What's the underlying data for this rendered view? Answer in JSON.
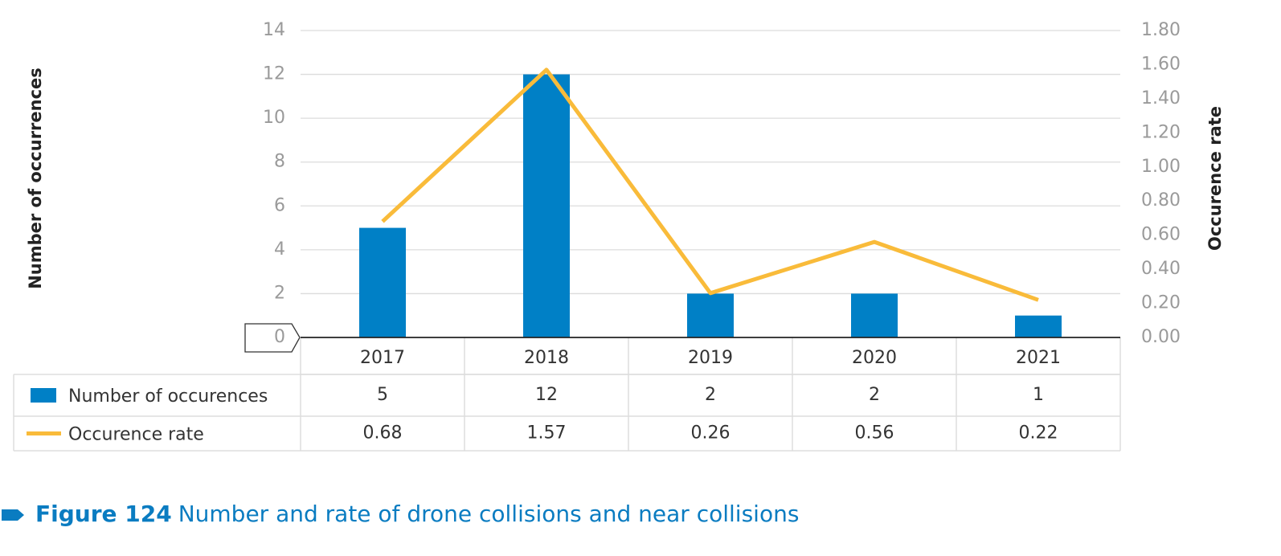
{
  "chart_data": {
    "type": "bar",
    "figure_label": "Figure 124",
    "title": "Number and rate of drone collisions and near collisions",
    "y_label": "Number of occurrences",
    "y2_label": "Occurence rate",
    "categories": [
      "2017",
      "2018",
      "2019",
      "2020",
      "2021"
    ],
    "series": [
      {
        "name": "Number of occurences",
        "type": "bar",
        "color": "#0080c6",
        "values": [
          5,
          12,
          2,
          2,
          1
        ]
      },
      {
        "name": "Occurence rate",
        "type": "line",
        "color": "#f9bb3a",
        "axis": "y2",
        "values": [
          0.68,
          1.57,
          0.26,
          0.56,
          0.22
        ]
      }
    ],
    "ylim": [
      0,
      14
    ],
    "yticks": [
      0,
      2,
      4,
      6,
      8,
      10,
      12,
      14
    ],
    "y2lim": [
      0,
      1.8
    ],
    "y2ticks": [
      {
        "value": 0,
        "label": "0.00"
      },
      {
        "value": 0.2,
        "label": "0.20"
      },
      {
        "value": 0.4,
        "label": "0.40"
      },
      {
        "value": 0.6,
        "label": "0.60"
      },
      {
        "value": 0.8,
        "label": "0.80"
      },
      {
        "value": 1,
        "label": "1.00"
      },
      {
        "value": 1.2,
        "label": "1.20"
      },
      {
        "value": 1.4,
        "label": "1.40"
      },
      {
        "value": 1.6,
        "label": "1.60"
      },
      {
        "value": 1.8,
        "label": "1.80"
      }
    ],
    "grid": true
  }
}
